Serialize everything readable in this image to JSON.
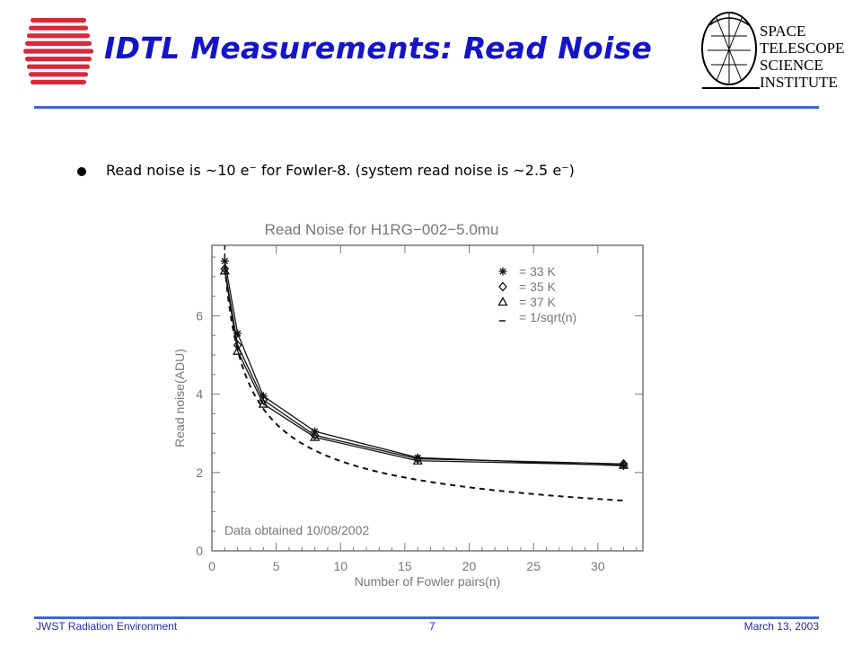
{
  "slide": {
    "title": "IDTL Measurements: Read Noise",
    "bullet": "Read noise is ~10 e⁻ for Fowler-8. (system read noise is ~2.5 e⁻)"
  },
  "logos": {
    "left_icon": "striped-globe-logo-icon",
    "right_text_lines": [
      "SPACE",
      "TELESCOPE",
      "SCIENCE",
      "INSTITUTE"
    ],
    "right_icon": "stsci-telescope-logo-icon"
  },
  "footer": {
    "left": "JWST Radiation Environment",
    "center": "7",
    "right": "March 13, 2003"
  },
  "colors": {
    "title": "#1414c8",
    "rule": "#3f66d6",
    "footer": "#2a2ab0",
    "chart_ink": "#777777",
    "series": "#111111",
    "logo_red": "#d9283a"
  },
  "chart_data": {
    "type": "line",
    "title": "Read Noise for H1RG−002−5.0mu",
    "xlabel": "Number of Fowler pairs(n)",
    "ylabel": "Read noise(ADU)",
    "xlim": [
      0,
      33.5
    ],
    "ylim": [
      0,
      7.8
    ],
    "xticks": [
      0,
      5,
      10,
      15,
      20,
      25,
      30
    ],
    "yticks": [
      0,
      2,
      4,
      6
    ],
    "grid": false,
    "legend_position": "top-right",
    "annotation": "Data obtained 10/08/2002",
    "x": [
      1,
      2,
      4,
      8,
      16,
      32
    ],
    "series": [
      {
        "name": "= 33 K",
        "marker": "asterisk",
        "values": [
          7.4,
          5.55,
          3.95,
          3.05,
          2.38,
          2.17
        ]
      },
      {
        "name": "= 35 K",
        "marker": "diamond",
        "values": [
          7.2,
          5.25,
          3.85,
          2.95,
          2.35,
          2.22
        ]
      },
      {
        "name": "= 37 K",
        "marker": "triangle",
        "values": [
          7.15,
          5.1,
          3.75,
          2.9,
          2.3,
          2.19
        ]
      }
    ],
    "reference": {
      "name": "= 1/sqrt(n)",
      "style": "dashed",
      "scale": 7.25,
      "x_range": [
        1,
        32
      ]
    }
  }
}
